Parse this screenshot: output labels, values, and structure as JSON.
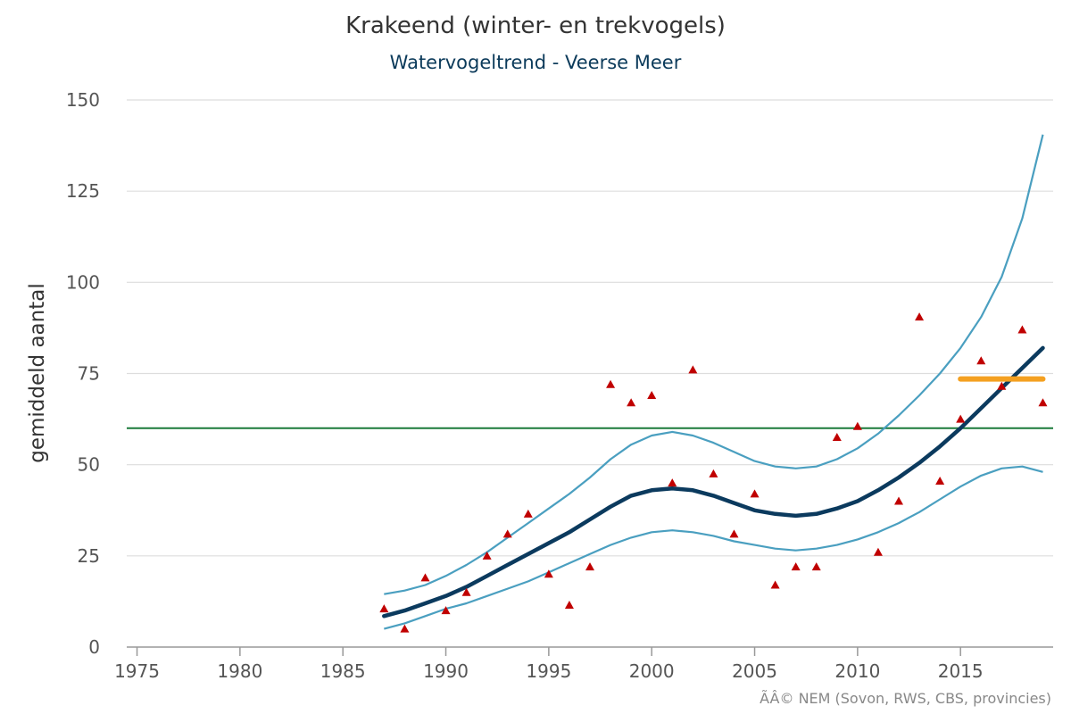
{
  "chart": {
    "title": "Krakeend (winter- en trekvogels)",
    "subtitle": "Watervogeltrend - Veerse Meer",
    "credit": "ÃÂ© NEM (Sovon, RWS, CBS, provincies)"
  },
  "chart_data": {
    "type": "line",
    "title": "Krakeend (winter- en trekvogels)",
    "subtitle": "Watervogeltrend - Veerse Meer",
    "xlabel": "",
    "ylabel": "gemiddeld aantal",
    "xlim": [
      1974.5,
      2019.5
    ],
    "ylim": [
      0,
      150
    ],
    "x_ticks": [
      1975,
      1980,
      1985,
      1990,
      1995,
      2000,
      2005,
      2010,
      2015
    ],
    "y_ticks": [
      0,
      25,
      50,
      75,
      100,
      125,
      150
    ],
    "grid": "horizontal",
    "colors": {
      "trend": "#0b3a5e",
      "bounds": "#4a9fc0",
      "reference": "#1a7a3a",
      "recent_mean": "#f4a020",
      "observed": "#c00000"
    },
    "trend": {
      "x": [
        1987,
        1988,
        1989,
        1990,
        1991,
        1992,
        1993,
        1994,
        1995,
        1996,
        1997,
        1998,
        1999,
        2000,
        2001,
        2002,
        2003,
        2004,
        2005,
        2006,
        2007,
        2008,
        2009,
        2010,
        2011,
        2012,
        2013,
        2014,
        2015,
        2016,
        2017,
        2018,
        2019
      ],
      "y": [
        8.5,
        10,
        12,
        14,
        16.5,
        19.5,
        22.5,
        25.5,
        28.5,
        31.5,
        35,
        38.5,
        41.5,
        43,
        43.5,
        43,
        41.5,
        39.5,
        37.5,
        36.5,
        36,
        36.5,
        38,
        40,
        43,
        46.5,
        50.5,
        55,
        60,
        65.5,
        71,
        76.5,
        82
      ]
    },
    "upper_bound": {
      "x": [
        1987,
        1988,
        1989,
        1990,
        1991,
        1992,
        1993,
        1994,
        1995,
        1996,
        1997,
        1998,
        1999,
        2000,
        2001,
        2002,
        2003,
        2004,
        2005,
        2006,
        2007,
        2008,
        2009,
        2010,
        2011,
        2012,
        2013,
        2014,
        2015,
        2016,
        2017,
        2018,
        2019
      ],
      "y": [
        14.5,
        15.5,
        17,
        19.5,
        22.5,
        26,
        30,
        34,
        38,
        42,
        46.5,
        51.5,
        55.5,
        58,
        59,
        58,
        56,
        53.5,
        51,
        49.5,
        49,
        49.5,
        51.5,
        54.5,
        58.5,
        63.5,
        69,
        75,
        82,
        90.5,
        101.5,
        117.5,
        140.5
      ]
    },
    "lower_bound": {
      "x": [
        1987,
        1988,
        1989,
        1990,
        1991,
        1992,
        1993,
        1994,
        1995,
        1996,
        1997,
        1998,
        1999,
        2000,
        2001,
        2002,
        2003,
        2004,
        2005,
        2006,
        2007,
        2008,
        2009,
        2010,
        2011,
        2012,
        2013,
        2014,
        2015,
        2016,
        2017,
        2018,
        2019
      ],
      "y": [
        5,
        6.5,
        8.5,
        10.5,
        12,
        14,
        16,
        18,
        20.5,
        23,
        25.5,
        28,
        30,
        31.5,
        32,
        31.5,
        30.5,
        29,
        28,
        27,
        26.5,
        27,
        28,
        29.5,
        31.5,
        34,
        37,
        40.5,
        44,
        47,
        49,
        49.5,
        48
      ]
    },
    "observed": {
      "x": [
        1987,
        1988,
        1989,
        1990,
        1991,
        1992,
        1993,
        1994,
        1995,
        1996,
        1997,
        1998,
        1999,
        2000,
        2001,
        2002,
        2003,
        2004,
        2005,
        2006,
        2007,
        2008,
        2009,
        2010,
        2011,
        2012,
        2013,
        2014,
        2015,
        2016,
        2017,
        2018,
        2019
      ],
      "y": [
        10.5,
        5,
        19,
        10,
        15,
        25,
        31,
        36.5,
        20,
        11.5,
        22,
        72,
        67,
        69,
        45,
        76,
        47.5,
        31,
        42,
        17,
        22,
        22,
        57.5,
        60.5,
        26,
        40,
        90.5,
        45.5,
        62.5,
        78.5,
        71.5,
        87,
        67
      ]
    },
    "reference_line": {
      "y": 60
    },
    "recent_mean": {
      "x": [
        2015,
        2019
      ],
      "y": 73.5
    }
  }
}
